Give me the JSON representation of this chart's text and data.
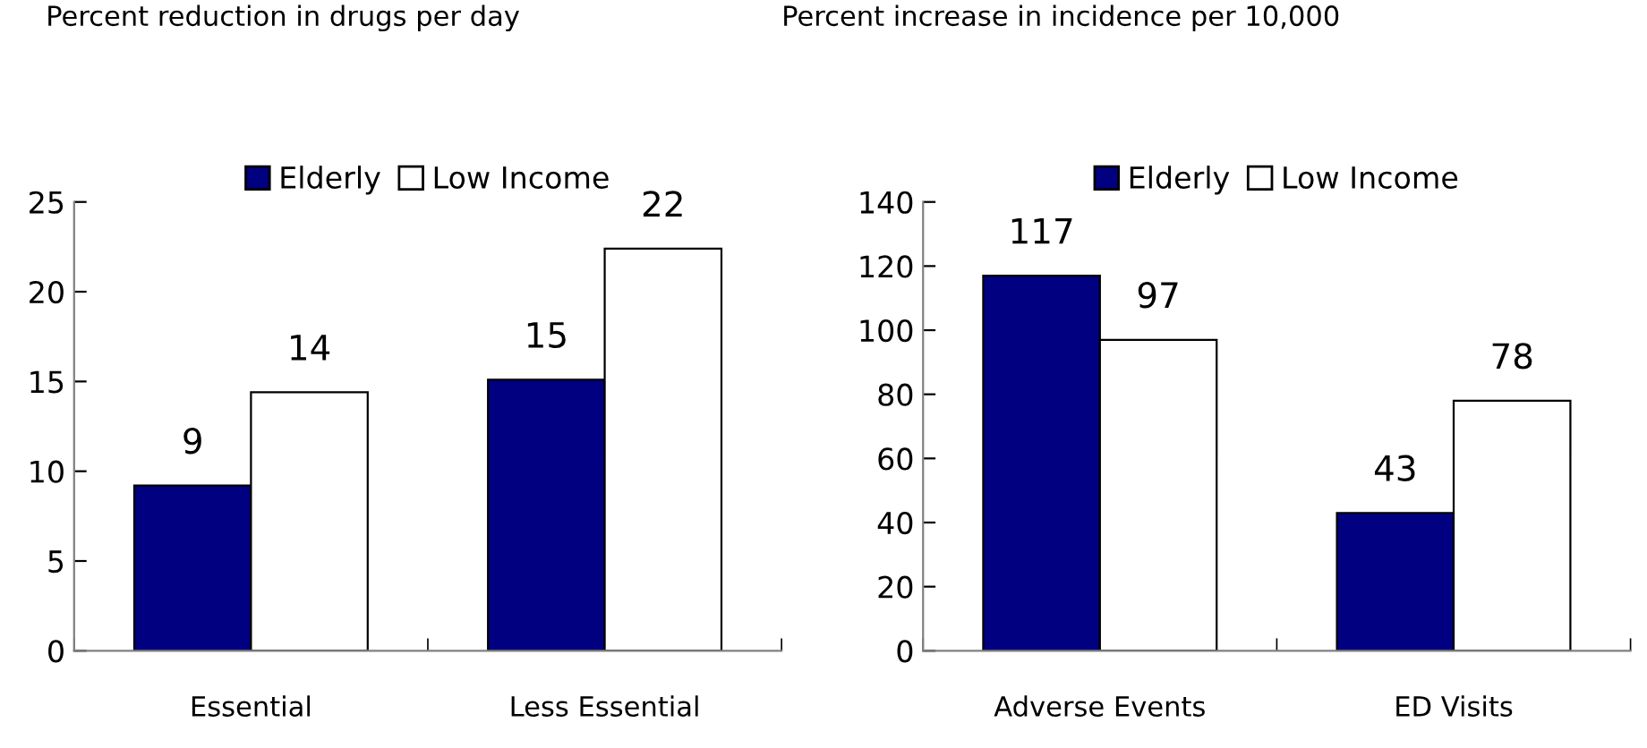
{
  "chart_data": [
    {
      "type": "bar",
      "title": "Percent reduction in drugs per day",
      "categories": [
        "Essential",
        "Less Essential"
      ],
      "series": [
        {
          "name": "Elderly",
          "color": "#000080",
          "values": [
            9.2,
            15.1
          ],
          "value_labels": [
            "9",
            "15"
          ]
        },
        {
          "name": "Low Income",
          "color": "#ffffff",
          "values": [
            14.4,
            22.4
          ],
          "value_labels": [
            "14",
            "22"
          ]
        }
      ],
      "ylim": [
        0,
        25
      ],
      "yticks": [
        0,
        5,
        10,
        15,
        20,
        25
      ],
      "grid": false,
      "legend": "top"
    },
    {
      "type": "bar",
      "title": "Percent increase in incidence per 10,000",
      "categories": [
        "Adverse Events",
        "ED Visits"
      ],
      "series": [
        {
          "name": "Elderly",
          "color": "#000080",
          "values": [
            117,
            43
          ]
        },
        {
          "name": "Low Income",
          "color": "#ffffff",
          "values": [
            97,
            78
          ]
        }
      ],
      "ylim": [
        0,
        140
      ],
      "yticks": [
        0,
        20,
        40,
        60,
        80,
        100,
        120,
        140
      ],
      "grid": false,
      "legend": "top",
      "data_labels": true
    }
  ]
}
